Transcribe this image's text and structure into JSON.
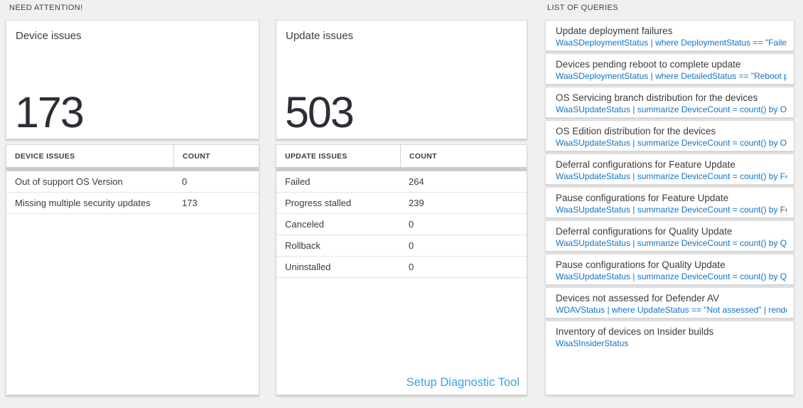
{
  "colors": {
    "page_background": "#f0f0f0",
    "query_link_blue": "#1273c5",
    "setup_link_blue": "#3da2de",
    "big_number_color": "#2b2f35",
    "thick_bar_gray": "#c8ccd2"
  },
  "sections": {
    "need_attention_label": "NEED ATTENTION!",
    "list_of_queries_label": "LIST OF QUERIES"
  },
  "tiles": {
    "device": {
      "title": "Device issues",
      "count": "173",
      "table": {
        "headers": [
          "DEVICE ISSUES",
          "COUNT"
        ],
        "rows": [
          {
            "label": "Out of support OS Version",
            "count": "0"
          },
          {
            "label": "Missing multiple security updates",
            "count": "173"
          }
        ]
      }
    },
    "update": {
      "title": "Update issues",
      "count": "503",
      "table": {
        "headers": [
          "UPDATE ISSUES",
          "COUNT"
        ],
        "rows": [
          {
            "label": "Failed",
            "count": "264"
          },
          {
            "label": "Progress stalled",
            "count": "239"
          },
          {
            "label": "Canceled",
            "count": "0"
          },
          {
            "label": "Rollback",
            "count": "0"
          },
          {
            "label": "Uninstalled",
            "count": "0"
          }
        ]
      },
      "footer_link": "Setup Diagnostic Tool"
    }
  },
  "queries": {
    "items": [
      {
        "title": "Update deployment failures",
        "query": "WaaSDeploymentStatus | where DeploymentStatus == \"Failed\" |..."
      },
      {
        "title": "Devices pending reboot to complete update",
        "query": "WaaSDeploymentStatus | where DetailedStatus == \"Reboot pend..."
      },
      {
        "title": "OS Servicing branch distribution for the devices",
        "query": "WaaSUpdateStatus | summarize DeviceCount = count() by OSSer..."
      },
      {
        "title": "OS Edition distribution for the devices",
        "query": "WaaSUpdateStatus | summarize DeviceCount = count() by OSEdit..."
      },
      {
        "title": "Deferral configurations for Feature Update",
        "query": "WaaSUpdateStatus | summarize DeviceCount = count() by Featur..."
      },
      {
        "title": "Pause configurations for Feature Update",
        "query": "WaaSUpdateStatus | summarize DeviceCount = count() by Featur..."
      },
      {
        "title": "Deferral configurations for Quality Update",
        "query": "WaaSUpdateStatus | summarize DeviceCount = count() by Qualit..."
      },
      {
        "title": "Pause configurations for Quality Update",
        "query": "WaaSUpdateStatus | summarize DeviceCount = count() by Qualit..."
      },
      {
        "title": "Devices not assessed for Defender AV",
        "query": "WDAVStatus | where UpdateStatus == \"Not assessed\" | render ta..."
      },
      {
        "title": "Inventory of devices on Insider builds",
        "query": "WaaSInsiderStatus"
      }
    ]
  }
}
